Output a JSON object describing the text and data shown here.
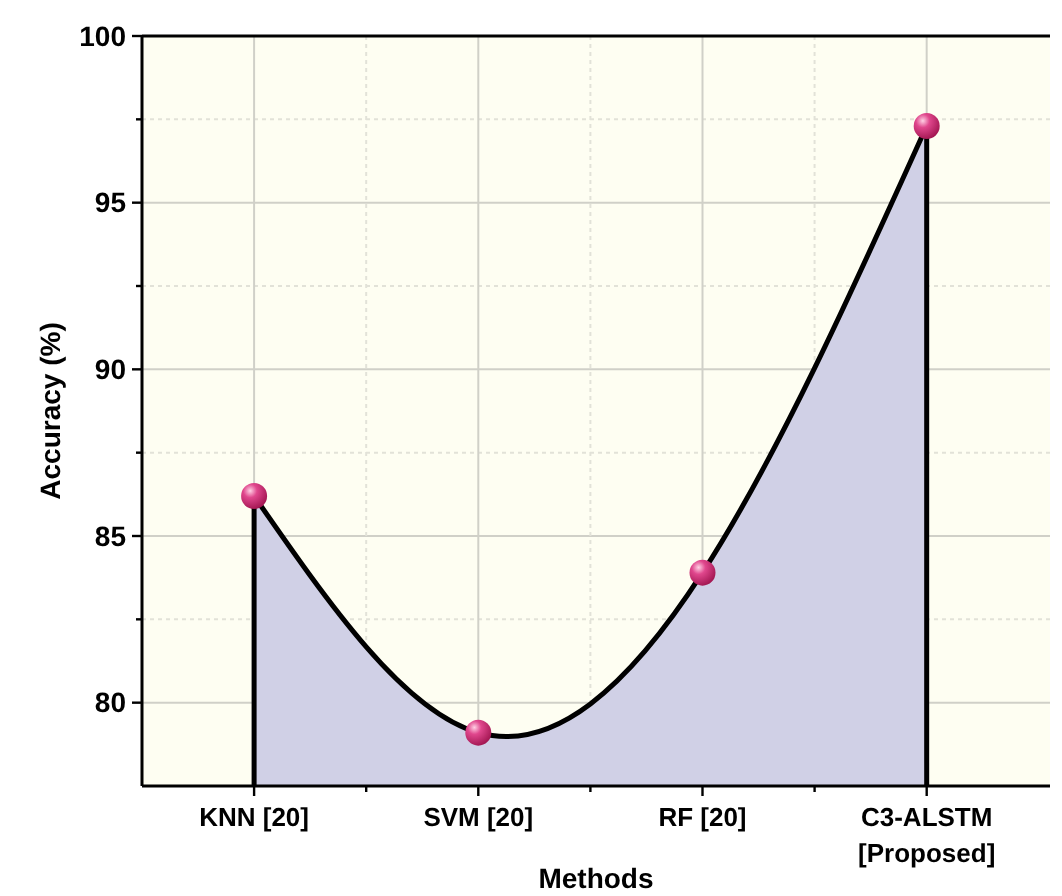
{
  "chart_data": {
    "type": "area",
    "xlabel": "Methods",
    "ylabel": "Accuracy (%)",
    "categories": [
      "KNN [20]",
      "SVM [20]",
      "RF [20]",
      "C3-ALSTM [Proposed]"
    ],
    "series": [
      {
        "color": "#d0d0e6",
        "values": [
          86.2,
          79.1,
          83.9,
          97.3
        ]
      }
    ],
    "ylim": [
      77.5,
      100
    ],
    "yticks": [
      80,
      {
        "value": 82.5,
        "label": null
      },
      85,
      {
        "value": 87.5,
        "label": null
      },
      90,
      {
        "value": 92.5,
        "label": null
      },
      95,
      {
        "value": 97.5,
        "label": null
      },
      100
    ],
    "grid": true,
    "marker": "circle",
    "line_style": "solid"
  }
}
